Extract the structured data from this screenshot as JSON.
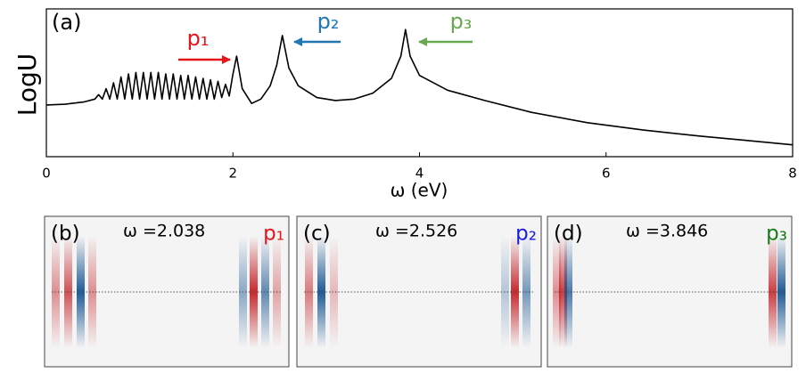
{
  "chart_data": {
    "type": "line",
    "panel_label": "(a)",
    "x_label": "ω (eV)",
    "y_label": "LogU",
    "xlim": [
      0,
      8
    ],
    "xticks": [
      0,
      2,
      4,
      6,
      8
    ],
    "ylim": [
      0,
      10
    ],
    "color": "#000000",
    "x": [
      0,
      0.2,
      0.4,
      0.52,
      0.56,
      0.6,
      0.64,
      0.68,
      0.72,
      0.76,
      0.8,
      0.84,
      0.88,
      0.92,
      0.96,
      1.0,
      1.04,
      1.08,
      1.12,
      1.16,
      1.2,
      1.24,
      1.28,
      1.32,
      1.36,
      1.4,
      1.44,
      1.48,
      1.52,
      1.56,
      1.6,
      1.64,
      1.68,
      1.72,
      1.76,
      1.8,
      1.84,
      1.88,
      1.92,
      1.96,
      2.0,
      2.04,
      2.1,
      2.2,
      2.3,
      2.4,
      2.47,
      2.53,
      2.6,
      2.7,
      2.9,
      3.1,
      3.3,
      3.5,
      3.7,
      3.8,
      3.85,
      3.9,
      4.0,
      4.3,
      4.7,
      5.2,
      5.8,
      6.4,
      7.0,
      7.5,
      8.0
    ],
    "values": [
      3.5,
      3.55,
      3.7,
      3.9,
      4.2,
      3.9,
      4.6,
      3.9,
      5.0,
      3.9,
      5.4,
      3.9,
      5.6,
      3.9,
      5.7,
      3.9,
      5.7,
      3.9,
      5.7,
      3.9,
      5.7,
      3.9,
      5.6,
      3.9,
      5.6,
      3.9,
      5.5,
      3.9,
      5.5,
      3.9,
      5.4,
      3.9,
      5.3,
      3.9,
      5.2,
      3.9,
      5.1,
      4.0,
      4.9,
      4.1,
      5.6,
      6.8,
      4.6,
      3.6,
      3.9,
      4.8,
      6.2,
      8.2,
      6.0,
      4.8,
      4.0,
      3.8,
      3.9,
      4.3,
      5.3,
      6.8,
      8.6,
      6.8,
      5.5,
      4.5,
      3.8,
      3.0,
      2.3,
      1.8,
      1.4,
      1.1,
      0.8
    ],
    "annotations": [
      {
        "text": "p₁",
        "color": "#e8141a"
      },
      {
        "text": "p₂",
        "color": "#1f77b4"
      },
      {
        "text": "p₃",
        "color": "#6aa84f"
      }
    ]
  },
  "panels": [
    {
      "label": "(b)",
      "omega": "ω =2.038",
      "peak": "p₁",
      "color": "#e8141a"
    },
    {
      "label": "(c)",
      "omega": "ω =2.526",
      "peak": "p₂",
      "color": "#1a1ae6"
    },
    {
      "label": "(d)",
      "omega": "ω =3.846",
      "peak": "p₃",
      "color": "#1a7a1a"
    }
  ]
}
